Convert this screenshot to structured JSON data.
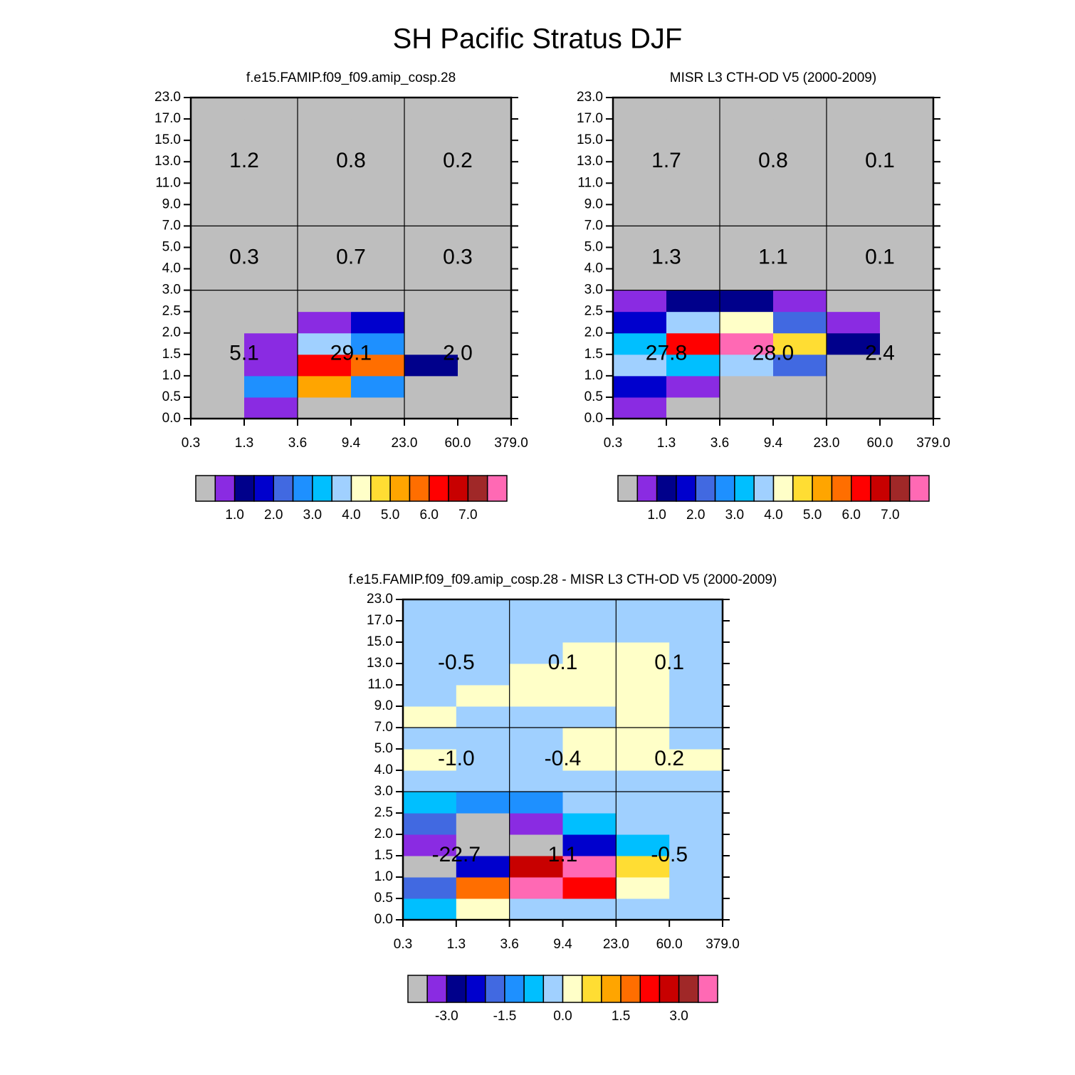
{
  "title": "SH Pacific Stratus DJF",
  "chart_data": [
    {
      "type": "heatmap",
      "title": "f.e15.FAMIP.f09_f09.amip_cosp.28",
      "x_edges": [
        "0.3",
        "1.3",
        "3.6",
        "9.4",
        "23.0",
        "60.0",
        "379.0"
      ],
      "y_edges": [
        "0.0",
        "0.5",
        "1.0",
        "1.5",
        "2.0",
        "2.5",
        "3.0",
        "4.0",
        "5.0",
        "7.0",
        "9.0",
        "11.0",
        "13.0",
        "15.0",
        "17.0",
        "23.0"
      ],
      "z": [
        [
          0,
          0.8,
          0,
          0,
          0,
          0
        ],
        [
          0,
          2.7,
          5.2,
          2.7,
          0,
          0
        ],
        [
          0,
          0.8,
          6.2,
          5.7,
          1.2,
          0
        ],
        [
          0,
          0.8,
          3.7,
          2.7,
          0,
          0
        ],
        [
          0,
          0,
          0.8,
          1.7,
          0,
          0
        ],
        [
          0,
          0,
          0,
          0,
          0,
          0
        ],
        [
          0,
          0,
          0,
          0,
          0,
          0
        ],
        [
          0,
          0,
          0,
          0,
          0,
          0
        ],
        [
          0,
          0,
          0,
          0,
          0,
          0
        ],
        [
          0,
          0,
          0,
          0,
          0,
          0
        ],
        [
          0,
          0,
          0,
          0,
          0,
          0
        ],
        [
          0,
          0,
          0,
          0,
          0,
          0
        ],
        [
          0,
          0,
          0,
          0,
          0,
          0
        ],
        [
          0,
          0,
          0,
          0,
          0,
          0
        ],
        [
          0,
          0,
          0,
          0,
          0,
          0
        ]
      ],
      "levels": [
        0.5,
        1,
        1.5,
        2,
        2.5,
        3,
        3.5,
        4,
        4.5,
        5,
        5.5,
        6,
        6.5,
        7,
        7.5
      ],
      "colors": [
        "#bebebe",
        "#8a2be2",
        "#00008b",
        "#0000cd",
        "#4169e1",
        "#1e90ff",
        "#00bfff",
        "#a0d0ff",
        "#ffffc8",
        "#ffdd33",
        "#ffa500",
        "#ff6e00",
        "#ff0000",
        "#c80000",
        "#a02828",
        "#ff69b4"
      ],
      "colorbar_ticks": [
        {
          "value": 1,
          "label": "1.0"
        },
        {
          "value": 2,
          "label": "2.0"
        },
        {
          "value": 3,
          "label": "3.0"
        },
        {
          "value": 4,
          "label": "4.0"
        },
        {
          "value": 5,
          "label": "5.0"
        },
        {
          "value": 6,
          "label": "6.0"
        },
        {
          "value": 7,
          "label": "7.0"
        }
      ],
      "region_values": [
        1.2,
        0.8,
        0.2,
        0.3,
        0.7,
        0.3,
        5.1,
        29.1,
        2.0
      ],
      "region_value_labels": [
        "1.2",
        "0.8",
        "0.2",
        "0.3",
        "0.7",
        "0.3",
        "5.1",
        "29.1",
        "2.0"
      ]
    },
    {
      "type": "heatmap",
      "title": "MISR L3 CTH-OD V5 (2000-2009)",
      "x_edges": [
        "0.3",
        "1.3",
        "3.6",
        "9.4",
        "23.0",
        "60.0",
        "379.0"
      ],
      "y_edges": [
        "0.0",
        "0.5",
        "1.0",
        "1.5",
        "2.0",
        "2.5",
        "3.0",
        "4.0",
        "5.0",
        "7.0",
        "9.0",
        "11.0",
        "13.0",
        "15.0",
        "17.0",
        "23.0"
      ],
      "z": [
        [
          0.8,
          0,
          0,
          0,
          0,
          0
        ],
        [
          1.7,
          0.8,
          0,
          0,
          0,
          0
        ],
        [
          3.7,
          3.2,
          3.7,
          2.2,
          0,
          0
        ],
        [
          3.2,
          6.2,
          7.7,
          4.7,
          1.2,
          0
        ],
        [
          1.7,
          3.7,
          4.2,
          2.2,
          0.8,
          0
        ],
        [
          0.8,
          1.2,
          1.2,
          0.8,
          0,
          0
        ],
        [
          0,
          0,
          0,
          0,
          0,
          0
        ],
        [
          0,
          0,
          0,
          0,
          0,
          0
        ],
        [
          0,
          0,
          0,
          0,
          0,
          0
        ],
        [
          0,
          0,
          0,
          0,
          0,
          0
        ],
        [
          0,
          0,
          0,
          0,
          0,
          0
        ],
        [
          0,
          0,
          0,
          0,
          0,
          0
        ],
        [
          0,
          0,
          0,
          0,
          0,
          0
        ],
        [
          0,
          0,
          0,
          0,
          0,
          0
        ],
        [
          0,
          0,
          0,
          0,
          0,
          0
        ]
      ],
      "levels": [
        0.5,
        1,
        1.5,
        2,
        2.5,
        3,
        3.5,
        4,
        4.5,
        5,
        5.5,
        6,
        6.5,
        7,
        7.5
      ],
      "colors": [
        "#bebebe",
        "#8a2be2",
        "#00008b",
        "#0000cd",
        "#4169e1",
        "#1e90ff",
        "#00bfff",
        "#a0d0ff",
        "#ffffc8",
        "#ffdd33",
        "#ffa500",
        "#ff6e00",
        "#ff0000",
        "#c80000",
        "#a02828",
        "#ff69b4"
      ],
      "colorbar_ticks": [
        {
          "value": 1,
          "label": "1.0"
        },
        {
          "value": 2,
          "label": "2.0"
        },
        {
          "value": 3,
          "label": "3.0"
        },
        {
          "value": 4,
          "label": "4.0"
        },
        {
          "value": 5,
          "label": "5.0"
        },
        {
          "value": 6,
          "label": "6.0"
        },
        {
          "value": 7,
          "label": "7.0"
        }
      ],
      "region_values": [
        1.7,
        0.8,
        0.1,
        1.3,
        1.1,
        0.1,
        27.8,
        28.0,
        2.4
      ],
      "region_value_labels": [
        "1.7",
        "0.8",
        "0.1",
        "1.3",
        "1.1",
        "0.1",
        "27.8",
        "28.0",
        "2.4"
      ]
    },
    {
      "type": "heatmap",
      "title": "f.e15.FAMIP.f09_f09.amip_cosp.28 - MISR L3 CTH-OD V5 (2000-2009)",
      "x_edges": [
        "0.3",
        "1.3",
        "3.6",
        "9.4",
        "23.0",
        "60.0",
        "379.0"
      ],
      "y_edges": [
        "0.0",
        "0.5",
        "1.0",
        "1.5",
        "2.0",
        "2.5",
        "3.0",
        "4.0",
        "5.0",
        "7.0",
        "9.0",
        "11.0",
        "13.0",
        "15.0",
        "17.0",
        "23.0"
      ],
      "z": [
        [
          -0.7,
          0.2,
          -0.2,
          -0.2,
          -0.2,
          -0.2
        ],
        [
          -1.7,
          1.7,
          3.7,
          2.2,
          0.2,
          -0.2
        ],
        [
          -3.7,
          -2.2,
          2.7,
          3.7,
          0.7,
          -0.2
        ],
        [
          -3.2,
          -3.7,
          -3.7,
          -2.2,
          -0.7,
          -0.2
        ],
        [
          -1.7,
          -3.7,
          -3.2,
          -0.7,
          -0.2,
          -0.2
        ],
        [
          -0.7,
          -1.2,
          -1.2,
          -0.2,
          -0.2,
          -0.2
        ],
        [
          -0.2,
          -0.2,
          -0.2,
          -0.2,
          -0.2,
          -0.2
        ],
        [
          0.2,
          -0.2,
          -0.2,
          0.2,
          0.2,
          0.2
        ],
        [
          -0.2,
          -0.2,
          -0.2,
          0.2,
          0.2,
          -0.2
        ],
        [
          0.2,
          -0.2,
          -0.2,
          -0.2,
          0.2,
          -0.2
        ],
        [
          -0.2,
          0.2,
          0.2,
          0.2,
          0.2,
          -0.2
        ],
        [
          -0.2,
          -0.2,
          0.2,
          0.2,
          0.2,
          -0.2
        ],
        [
          -0.2,
          -0.2,
          -0.2,
          0.2,
          0.2,
          -0.2
        ],
        [
          -0.2,
          -0.2,
          -0.2,
          -0.2,
          -0.2,
          -0.2
        ],
        [
          -0.2,
          -0.2,
          -0.2,
          -0.2,
          -0.2,
          -0.2
        ]
      ],
      "levels": [
        -3.5,
        -3,
        -2.5,
        -2,
        -1.5,
        -1,
        -0.5,
        0,
        0.5,
        1,
        1.5,
        2,
        2.5,
        3,
        3.5
      ],
      "colors": [
        "#bebebe",
        "#8a2be2",
        "#00008b",
        "#0000cd",
        "#4169e1",
        "#1e90ff",
        "#00bfff",
        "#a0d0ff",
        "#ffffc8",
        "#ffdd33",
        "#ffa500",
        "#ff6e00",
        "#ff0000",
        "#c80000",
        "#a02828",
        "#ff69b4"
      ],
      "colorbar_ticks": [
        {
          "value": -3,
          "label": "-3.0"
        },
        {
          "value": -1.5,
          "label": "-1.5"
        },
        {
          "value": 0,
          "label": "0.0"
        },
        {
          "value": 1.5,
          "label": "1.5"
        },
        {
          "value": 3,
          "label": "3.0"
        }
      ],
      "region_values": [
        -0.5,
        0.1,
        0.1,
        -1.0,
        -0.4,
        0.2,
        -22.7,
        1.1,
        -0.5
      ],
      "region_value_labels": [
        "-0.5",
        "0.1",
        "0.1",
        "-1.0",
        "-0.4",
        "0.2",
        "-22.7",
        "1.1",
        "-0.5"
      ]
    }
  ]
}
